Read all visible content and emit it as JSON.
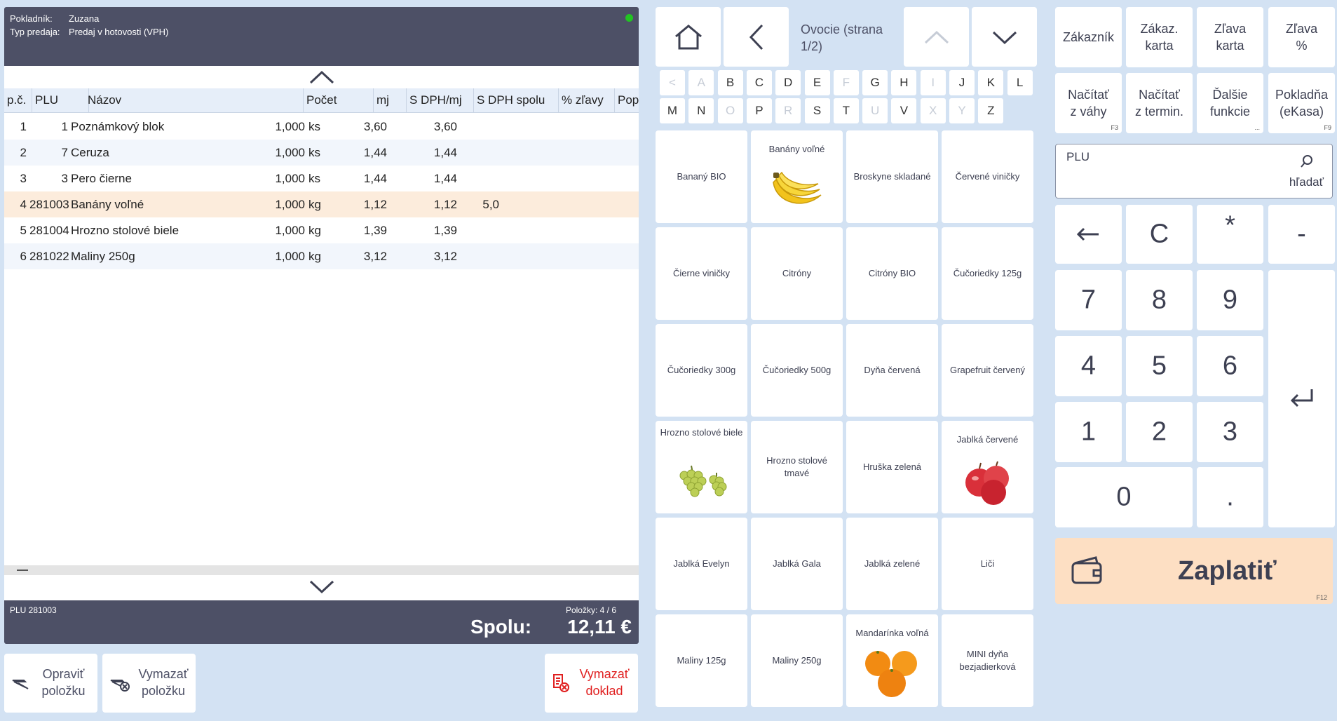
{
  "header": {
    "cashier_label": "Pokladník:",
    "cashier_value": "Zuzana",
    "sale_type_label": "Typ predaja:",
    "sale_type_value": "Predaj v hotovosti (VPH)",
    "status_color": "#22c422"
  },
  "table": {
    "columns": [
      "p.č.",
      "PLU",
      "Názov",
      "Počet",
      "mj",
      "S DPH/mj",
      "S DPH spolu",
      "% zľavy",
      "Pop"
    ],
    "rows": [
      {
        "n": "1",
        "plu": "1",
        "name": "Poznámkový blok",
        "qty": "1,000",
        "unit": "ks",
        "unit_price": "3,60",
        "total": "3,60",
        "discount": ""
      },
      {
        "n": "2",
        "plu": "7",
        "name": "Ceruza",
        "qty": "1,000",
        "unit": "ks",
        "unit_price": "1,44",
        "total": "1,44",
        "discount": ""
      },
      {
        "n": "3",
        "plu": "3",
        "name": "Pero čierne",
        "qty": "1,000",
        "unit": "ks",
        "unit_price": "1,44",
        "total": "1,44",
        "discount": ""
      },
      {
        "n": "4",
        "plu": "281003",
        "name": "Banány voľné",
        "qty": "1,000",
        "unit": "kg",
        "unit_price": "1,12",
        "total": "1,12",
        "discount": "5,0"
      },
      {
        "n": "5",
        "plu": "281004",
        "name": "Hrozno stolové biele",
        "qty": "1,000",
        "unit": "kg",
        "unit_price": "1,39",
        "total": "1,39",
        "discount": ""
      },
      {
        "n": "6",
        "plu": "281022",
        "name": "Maliny 250g",
        "qty": "1,000",
        "unit": "kg",
        "unit_price": "3,12",
        "total": "3,12",
        "discount": ""
      }
    ],
    "selected_row": 3
  },
  "footer": {
    "plu_info": "PLU 281003",
    "items_count": "Položky: 4 / 6",
    "total_label": "Spolu:",
    "total_value": "12,11 €"
  },
  "actions": {
    "edit_line1": "Opraviť",
    "edit_line2": "položku",
    "delete_line1": "Vymazať",
    "delete_line2": "položku",
    "void_line1": "Vymazať",
    "void_line2": "doklad",
    "void_color": "#e02020"
  },
  "nav": {
    "category_line1": "Ovocie (strana",
    "category_line2": "1/2)"
  },
  "alphabet": {
    "row1": [
      {
        "c": "<",
        "on": false
      },
      {
        "c": "A",
        "on": false
      },
      {
        "c": "B",
        "on": true
      },
      {
        "c": "C",
        "on": true
      },
      {
        "c": "D",
        "on": true
      },
      {
        "c": "E",
        "on": true
      },
      {
        "c": "F",
        "on": false
      },
      {
        "c": "G",
        "on": true
      },
      {
        "c": "H",
        "on": true
      },
      {
        "c": "I",
        "on": false
      },
      {
        "c": "J",
        "on": true
      },
      {
        "c": "K",
        "on": true
      },
      {
        "c": "L",
        "on": true
      }
    ],
    "row2": [
      {
        "c": "M",
        "on": true
      },
      {
        "c": "N",
        "on": true
      },
      {
        "c": "O",
        "on": false
      },
      {
        "c": "P",
        "on": true
      },
      {
        "c": "R",
        "on": false
      },
      {
        "c": "S",
        "on": true
      },
      {
        "c": "T",
        "on": true
      },
      {
        "c": "U",
        "on": false
      },
      {
        "c": "V",
        "on": true
      },
      {
        "c": "X",
        "on": false
      },
      {
        "c": "Y",
        "on": false
      },
      {
        "c": "Z",
        "on": true
      }
    ]
  },
  "products": [
    {
      "label": "Bananý BIO",
      "icon": ""
    },
    {
      "label": "Banány voľné",
      "icon": "banana-icon"
    },
    {
      "label": "Broskyne skladané",
      "icon": ""
    },
    {
      "label": "Červené viničky",
      "icon": ""
    },
    {
      "label": "Čierne viničky",
      "icon": ""
    },
    {
      "label": "Citróny",
      "icon": ""
    },
    {
      "label": "Citróny BIO",
      "icon": ""
    },
    {
      "label": "Čučoriedky 125g",
      "icon": ""
    },
    {
      "label": "Čučoriedky 300g",
      "icon": ""
    },
    {
      "label": "Čučoriedky 500g",
      "icon": ""
    },
    {
      "label": "Dyňa červená",
      "icon": ""
    },
    {
      "label": "Grapefruit červený",
      "icon": ""
    },
    {
      "label": "Hrozno stolové biele",
      "icon": "grapes-icon"
    },
    {
      "label": "Hrozno stolové tmavé",
      "icon": ""
    },
    {
      "label": "Hruška zelená",
      "icon": ""
    },
    {
      "label": "Jablká červené",
      "icon": "apple-icon"
    },
    {
      "label": "Jablká Evelyn",
      "icon": ""
    },
    {
      "label": "Jablká Gala",
      "icon": ""
    },
    {
      "label": "Jablká zelené",
      "icon": ""
    },
    {
      "label": "Liči",
      "icon": ""
    },
    {
      "label": "Maliny 125g",
      "icon": ""
    },
    {
      "label": "Maliny 250g",
      "icon": ""
    },
    {
      "label": "Mandarínka voľná",
      "icon": "mandarin-icon"
    },
    {
      "label": "MINI dyňa bezjadierková",
      "icon": ""
    }
  ],
  "functions": [
    {
      "line1": "Zákazník",
      "line2": "",
      "key": ""
    },
    {
      "line1": "Zákaz.",
      "line2": "karta",
      "key": ""
    },
    {
      "line1": "Zľava",
      "line2": "karta",
      "key": ""
    },
    {
      "line1": "Zľava",
      "line2": "%",
      "key": ""
    },
    {
      "line1": "Načítať",
      "line2": "z váhy",
      "key": "F3"
    },
    {
      "line1": "Načítať",
      "line2": "z termin.",
      "key": ""
    },
    {
      "line1": "Ďalšie",
      "line2": "funkcie",
      "key": "..."
    },
    {
      "line1": "Pokladňa",
      "line2": "(eKasa)",
      "key": "F9"
    }
  ],
  "plu_input": {
    "label": "PLU",
    "search_label": "hľadať",
    "value": ""
  },
  "keypad": {
    "backspace": "←",
    "clear": "C",
    "multiply": "*",
    "minus": "-",
    "d7": "7",
    "d8": "8",
    "d9": "9",
    "d4": "4",
    "d5": "5",
    "d6": "6",
    "d1": "1",
    "d2": "2",
    "d3": "3",
    "d0": "0",
    "dot": "."
  },
  "pay": {
    "label": "Zaplatiť",
    "key": "F12",
    "color": "#fddfc3"
  }
}
